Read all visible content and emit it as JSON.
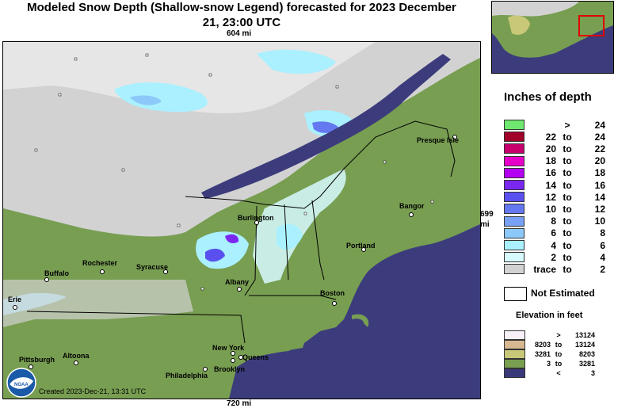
{
  "title_line1": "Modeled Snow Depth (Shallow-snow Legend) forecasted for 2023 December",
  "title_line2": "21, 23:00 UTC",
  "scale_top": "604 mi",
  "scale_bottom": "720 mi",
  "scale_right_num": "699",
  "scale_right_unit": "mi",
  "legend_title": "Inches of depth",
  "legend": [
    {
      "lo": "",
      "to": ">",
      "hi": "24",
      "color": "#6ee86e"
    },
    {
      "lo": "22",
      "to": "to",
      "hi": "24",
      "color": "#a0002a"
    },
    {
      "lo": "20",
      "to": "to",
      "hi": "22",
      "color": "#c8006e"
    },
    {
      "lo": "18",
      "to": "to",
      "hi": "20",
      "color": "#e600c8"
    },
    {
      "lo": "16",
      "to": "to",
      "hi": "18",
      "color": "#b400f0"
    },
    {
      "lo": "14",
      "to": "to",
      "hi": "16",
      "color": "#7a28f0"
    },
    {
      "lo": "12",
      "to": "to",
      "hi": "14",
      "color": "#5a50f0"
    },
    {
      "lo": "10",
      "to": "to",
      "hi": "12",
      "color": "#6478f0"
    },
    {
      "lo": "8",
      "to": "to",
      "hi": "10",
      "color": "#78a0f5"
    },
    {
      "lo": "6",
      "to": "to",
      "hi": "8",
      "color": "#8cc8fa"
    },
    {
      "lo": "4",
      "to": "to",
      "hi": "6",
      "color": "#aaf0ff"
    },
    {
      "lo": "2",
      "to": "to",
      "hi": "4",
      "color": "#d7faff"
    },
    {
      "lo": "trace",
      "to": "to",
      "hi": "2",
      "color": "#d2d2d2"
    }
  ],
  "not_estimated": "Not Estimated",
  "elevation_title": "Elevation in feet",
  "elevation": [
    {
      "lo": "",
      "to": ">",
      "hi": "13124",
      "color": "#f8f0f8"
    },
    {
      "lo": "8203",
      "to": "to",
      "hi": "13124",
      "color": "#d8b890"
    },
    {
      "lo": "3281",
      "to": "to",
      "hi": "8203",
      "color": "#c8c878"
    },
    {
      "lo": "3",
      "to": "to",
      "hi": "3281",
      "color": "#78a050"
    },
    {
      "lo": "",
      "to": "<",
      "hi": "3",
      "color": "#3a3a7a"
    }
  ],
  "cities": {
    "presque_isle": "Presque Isle",
    "burlington": "Burlington",
    "bangor": "Bangor",
    "rochester": "Rochester",
    "syracuse": "Syracuse",
    "buffalo": "Buffalo",
    "portland": "Portland",
    "albany": "Albany",
    "erie": "Erie",
    "boston": "Boston",
    "pittsburgh": "Pittsburgh",
    "altoona": "Altoona",
    "new_york": "New York",
    "queens": "Queens",
    "brooklyn": "Brooklyn",
    "philadelphia": "Philadelphia"
  },
  "created": "Created 2023-Dec-21, 13:31 UTC",
  "logo_text": "NOAA",
  "colors": {
    "ocean": "#3c3c7c",
    "land_low": "#789e52",
    "land_mid": "#a4b870",
    "snow_trace": "#d2d2d2",
    "snow_light": "#d7faff",
    "snow_blue": "#aaf0ff",
    "inset_box": "#e00000"
  }
}
